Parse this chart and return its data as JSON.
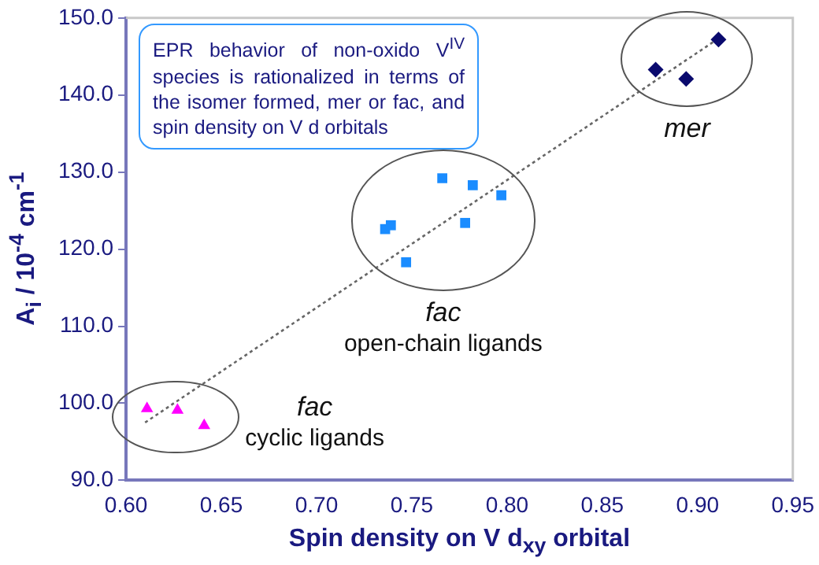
{
  "chart_data": {
    "type": "scatter",
    "xlabel": "Spin density on V d$_{xy}$ orbital",
    "ylabel": "A$_{i}$ / 10$^{-4}$ cm$^{-1}$",
    "series": [
      {
        "color": "#ff00ff",
        "marker": "triangle",
        "x": [
          0.611,
          0.627,
          0.641
        ],
        "values": [
          99.3,
          99.1,
          97.1
        ]
      },
      {
        "color": "#1a8cff",
        "marker": "square",
        "x": [
          0.766,
          0.782,
          0.797,
          0.778,
          0.736,
          0.739,
          0.747
        ],
        "values": [
          129.2,
          128.3,
          127.0,
          123.4,
          122.6,
          123.1,
          118.3
        ]
      },
      {
        "color": "#0a0a6e",
        "marker": "diamond",
        "x": [
          0.878,
          0.894,
          0.911
        ],
        "values": [
          143.3,
          142.1,
          147.2
        ]
      },
      {
        "type": "line",
        "color": "#666666",
        "line_style": "dotted",
        "marker": "none",
        "x": [
          0.61,
          0.912
        ],
        "values": [
          97.5,
          147.5
        ]
      }
    ],
    "xlim": [
      0.6,
      0.95
    ],
    "xticks": [
      {
        "value": 0.6,
        "label": "0.60"
      },
      {
        "value": 0.65,
        "label": "0.65"
      },
      {
        "value": 0.7,
        "label": "0.70"
      },
      {
        "value": 0.75,
        "label": "0.75"
      },
      {
        "value": 0.8,
        "label": "0.80"
      },
      {
        "value": 0.85,
        "label": "0.85"
      },
      {
        "value": 0.9,
        "label": "0.90"
      },
      {
        "value": 0.95,
        "label": "0.95"
      }
    ],
    "ylim": [
      90,
      150
    ],
    "yticks": [
      {
        "value": 90,
        "label": "90.0"
      },
      {
        "value": 100,
        "label": "100.0"
      },
      {
        "value": 110,
        "label": "110.0"
      },
      {
        "value": 120,
        "label": "120.0"
      },
      {
        "value": 130,
        "label": "130.0"
      },
      {
        "value": 140,
        "label": "140.0"
      },
      {
        "value": 150,
        "label": "150.0"
      }
    ],
    "annotations": [
      "EPR behavior of non-oxido V$^{IV}$ species is rationalized in terms of the isomer formed, mer or fac, and spin density on V d orbitals",
      "fac\ncyclic ligands",
      "fac\nopen-chain ligands",
      "mer"
    ],
    "grid": false,
    "legend": false
  }
}
